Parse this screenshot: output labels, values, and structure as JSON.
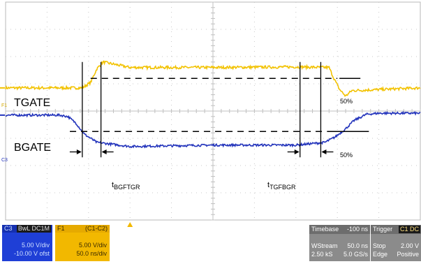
{
  "chart_data": {
    "type": "line",
    "grid": true,
    "x_divisions": 10,
    "y_divisions": 8,
    "series": [
      {
        "name": "TGATE",
        "channel_marker": "F1",
        "color": "#f2c200",
        "x_div": [
          0,
          1.85,
          2.05,
          2.2,
          2.35,
          3.0,
          5.0,
          7.0,
          7.8,
          7.9,
          8.05,
          8.2,
          8.35,
          10
        ],
        "y_div": [
          4.85,
          4.85,
          5.05,
          5.55,
          5.8,
          5.6,
          5.6,
          5.62,
          5.6,
          5.25,
          4.8,
          4.55,
          4.75,
          4.85
        ],
        "noise": 0.05
      },
      {
        "name": "BGATE",
        "channel_marker": "C3",
        "color": "#2233bb",
        "x_div": [
          0,
          1.3,
          1.5,
          1.7,
          1.9,
          2.2,
          3.0,
          5.0,
          7.0,
          7.7,
          7.95,
          8.2,
          8.4,
          8.7,
          9.0,
          10
        ],
        "y_div": [
          3.85,
          3.85,
          3.8,
          3.55,
          3.15,
          2.85,
          2.7,
          2.75,
          2.75,
          2.85,
          3.05,
          3.35,
          3.65,
          3.88,
          3.92,
          3.92
        ],
        "noise": 0.04
      }
    ],
    "annotations": {
      "tgate_label": "TGATE",
      "bgate_label": "BGATE",
      "pct_top": "50%",
      "pct_bottom": "50%",
      "t1_main": "t",
      "t1_sub": "BGFTGR",
      "t2_main": "t",
      "t2_sub": "TGFBGR",
      "ch_f1": "F1",
      "ch_c3": "C3"
    }
  },
  "panels": {
    "c3": {
      "title": "C3",
      "tag": "BwL DC1M",
      "line1": "5.00 V/div",
      "line2": "-10.00 V ofst"
    },
    "f1": {
      "title": "F1",
      "tag": "(C1-C2)",
      "line1": "5.00 V/div",
      "line2": "50.0 ns/div"
    },
    "timebase": {
      "label": "Timebase",
      "value": "-100 ns",
      "r1a": "WStream",
      "r1b": "50.0 ns",
      "r2a": "2.50 kS",
      "r2b": "5.0 GS/s"
    },
    "trigger": {
      "label": "Trigger",
      "tag": "C1 DC",
      "r1a": "Stop",
      "r1b": "2.00 V",
      "r2a": "Edge",
      "r2b": "Positive"
    }
  }
}
